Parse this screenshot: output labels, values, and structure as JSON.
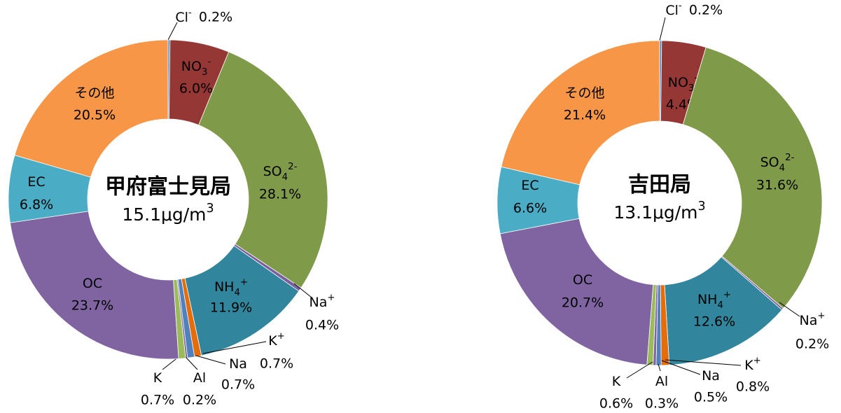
{
  "chart_data": [
    {
      "type": "donut",
      "center_title": "甲府富士見局",
      "center_sub": [
        {
          "t": "15.1μg/m"
        },
        {
          "t": "3",
          "s": "sup"
        }
      ],
      "categories": [
        [
          {
            "t": "Cl"
          },
          {
            "t": "-",
            "s": "sup"
          }
        ],
        [
          {
            "t": "NO"
          },
          {
            "t": "3",
            "s": "sub"
          },
          {
            "t": "-",
            "s": "sup"
          }
        ],
        [
          {
            "t": "SO"
          },
          {
            "t": "4",
            "s": "sub"
          },
          {
            "t": "2-",
            "s": "sup"
          }
        ],
        [
          {
            "t": "Na"
          },
          {
            "t": "+",
            "s": "sup"
          }
        ],
        [
          {
            "t": "NH"
          },
          {
            "t": "4",
            "s": "sub"
          },
          {
            "t": "+",
            "s": "sup"
          }
        ],
        [
          {
            "t": "K"
          },
          {
            "t": "+",
            "s": "sup"
          }
        ],
        [
          {
            "t": "Na"
          }
        ],
        [
          {
            "t": "Al"
          }
        ],
        [
          {
            "t": "K"
          }
        ],
        [
          {
            "t": "OC"
          }
        ],
        [
          {
            "t": "EC"
          }
        ],
        [
          {
            "t": "その他"
          }
        ]
      ],
      "values": [
        0.2,
        6.0,
        28.1,
        0.4,
        11.9,
        0.7,
        0.7,
        0.2,
        0.7,
        23.7,
        6.8,
        20.5
      ],
      "value_labels": [
        "0.2%",
        "6.0%",
        "28.1%",
        "0.4%",
        "11.9%",
        "0.7%",
        "0.7%",
        "0.2%",
        "0.7%",
        "23.7%",
        "6.8%",
        "20.5%"
      ],
      "colors": [
        "#4f81bd",
        "#953735",
        "#7f9a48",
        "#7a5fa0",
        "#31859c",
        "#e46c0a",
        "#4f81bd",
        "#8064a2",
        "#9bbb59",
        "#8064a2",
        "#4bacc6",
        "#f79646"
      ]
    },
    {
      "type": "donut",
      "center_title": "吉田局",
      "center_sub": [
        {
          "t": "13.1μg/m"
        },
        {
          "t": "3",
          "s": "sup"
        }
      ],
      "categories": [
        [
          {
            "t": "Cl"
          },
          {
            "t": "-",
            "s": "sup"
          }
        ],
        [
          {
            "t": "NO"
          },
          {
            "t": "3",
            "s": "sub"
          },
          {
            "t": "-",
            "s": "sup"
          }
        ],
        [
          {
            "t": "SO"
          },
          {
            "t": "4",
            "s": "sub"
          },
          {
            "t": "2-",
            "s": "sup"
          }
        ],
        [
          {
            "t": "Na"
          },
          {
            "t": "+",
            "s": "sup"
          }
        ],
        [
          {
            "t": "NH"
          },
          {
            "t": "4",
            "s": "sub"
          },
          {
            "t": "+",
            "s": "sup"
          }
        ],
        [
          {
            "t": "K"
          },
          {
            "t": "+",
            "s": "sup"
          }
        ],
        [
          {
            "t": "Na"
          }
        ],
        [
          {
            "t": "Al"
          }
        ],
        [
          {
            "t": "K"
          }
        ],
        [
          {
            "t": "OC"
          }
        ],
        [
          {
            "t": "EC"
          }
        ],
        [
          {
            "t": "その他"
          }
        ]
      ],
      "values": [
        0.2,
        4.4,
        31.6,
        0.2,
        12.6,
        0.8,
        0.5,
        0.3,
        0.6,
        20.7,
        6.6,
        21.4
      ],
      "value_labels": [
        "0.2%",
        "4.4%",
        "31.6%",
        "0.2%",
        "12.6%",
        "0.8%",
        "0.5%",
        "0.3%",
        "0.6%",
        "20.7%",
        "6.6%",
        "21.4%"
      ],
      "colors": [
        "#4f81bd",
        "#953735",
        "#7f9a48",
        "#7a5fa0",
        "#31859c",
        "#e46c0a",
        "#4f81bd",
        "#8064a2",
        "#9bbb59",
        "#8064a2",
        "#4bacc6",
        "#f79646"
      ]
    }
  ]
}
